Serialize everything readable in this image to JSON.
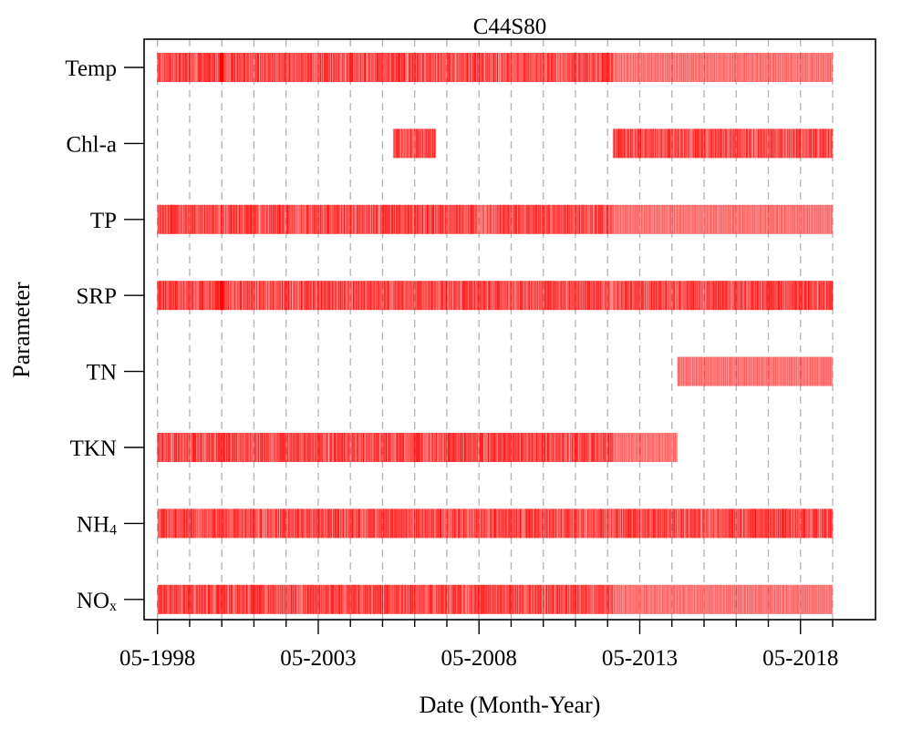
{
  "chart_data": {
    "type": "timeline",
    "title": "C44S80",
    "xlabel": "Date (Month-Year)",
    "ylabel": "Parameter",
    "grid": "vertical dashed",
    "legend": "none",
    "mark_color": "#ff0000",
    "xlim": [
      "1997-12",
      "2020-09"
    ],
    "x_tick_labels": [
      "05-1998",
      "05-2003",
      "05-2008",
      "05-2013",
      "05-2018"
    ],
    "x_ticks_major": [
      "1998-05",
      "2003-05",
      "2008-05",
      "2013-05",
      "2018-05"
    ],
    "x_ticks_minor": [
      "1999-05",
      "2000-05",
      "2001-05",
      "2002-05",
      "2004-05",
      "2005-05",
      "2006-05",
      "2007-05",
      "2009-05",
      "2010-05",
      "2011-05",
      "2012-05",
      "2014-05",
      "2015-05",
      "2016-05",
      "2017-05",
      "2019-05"
    ],
    "parameters": [
      {
        "label": "Temp",
        "sub": "",
        "sparse": [
          [
            "1998-05",
            "2012-06"
          ]
        ],
        "dense": [
          [
            "2012-07",
            "2019-05"
          ]
        ],
        "heavy": [
          "2000-05"
        ]
      },
      {
        "label": "Chl-a",
        "sub": "",
        "sparse": [
          [
            "2005-09",
            "2006-12"
          ],
          [
            "2012-07",
            "2019-04"
          ]
        ],
        "dense": [],
        "heavy": []
      },
      {
        "label": "TP",
        "sub": "",
        "sparse": [
          [
            "1998-05",
            "2012-06"
          ]
        ],
        "dense": [
          [
            "2012-07",
            "2019-05"
          ]
        ],
        "heavy": []
      },
      {
        "label": "SRP",
        "sub": "",
        "sparse": [
          [
            "1998-05",
            "2019-04"
          ]
        ],
        "dense": [],
        "heavy": [
          "2000-05"
        ]
      },
      {
        "label": "TN",
        "sub": "",
        "sparse": [],
        "dense": [
          [
            "2014-07",
            "2019-05"
          ]
        ],
        "heavy": []
      },
      {
        "label": "TKN",
        "sub": "",
        "sparse": [
          [
            "1998-05",
            "2012-06"
          ]
        ],
        "dense": [
          [
            "2012-07",
            "2014-07"
          ]
        ],
        "heavy": []
      },
      {
        "label": "NH",
        "sub": "4",
        "sparse": [
          [
            "1998-05",
            "2019-04"
          ]
        ],
        "dense": [],
        "heavy": []
      },
      {
        "label": "NO",
        "sub": "x",
        "sparse": [
          [
            "1998-05",
            "2012-06"
          ]
        ],
        "dense": [
          [
            "2012-07",
            "2019-05"
          ]
        ],
        "heavy": []
      }
    ]
  }
}
